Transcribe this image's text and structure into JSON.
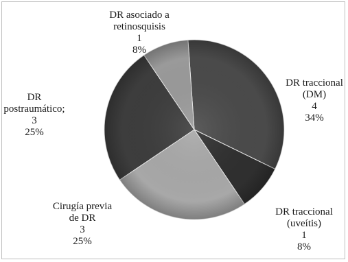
{
  "chart_data": {
    "type": "pie",
    "title": "",
    "slices": [
      {
        "label_lines": [
          "DR traccional",
          "(DM)"
        ],
        "count": "4",
        "percent": "34%",
        "value": 4,
        "color": "#4a4a4a"
      },
      {
        "label_lines": [
          "DR traccional",
          "(uveítis)"
        ],
        "count": "1",
        "percent": "8%",
        "value": 1,
        "color": "#2f2f2f"
      },
      {
        "label_lines": [
          "Cirugía previa",
          "de DR"
        ],
        "count": "3",
        "percent": "25%",
        "value": 3,
        "color": "#a8a8a8"
      },
      {
        "label_lines": [
          "DR",
          "postraumático;"
        ],
        "count": "3",
        "percent": "25%",
        "value": 3,
        "color": "#3d3d3d"
      },
      {
        "label_lines": [
          "DR asociado a",
          "retinosquisis"
        ],
        "count": "1",
        "percent": "8%",
        "value": 1,
        "color": "#9a9a9a"
      }
    ],
    "legend": "none"
  }
}
